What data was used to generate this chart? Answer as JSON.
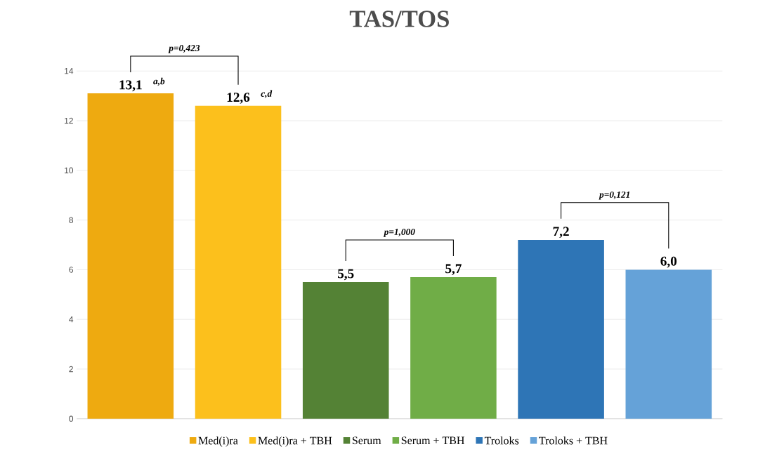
{
  "chart_data": {
    "type": "bar",
    "title": "TAS/TOS",
    "categories": [
      null,
      null,
      null,
      null,
      null,
      null
    ],
    "series": [
      {
        "name": "Med(i)ra",
        "color": "#eeaa10",
        "values": [
          13.1,
          null,
          null,
          null,
          null,
          null
        ],
        "value_labels": [
          "13,1",
          null,
          null,
          null,
          null,
          null
        ]
      },
      {
        "name": "Med(i)ra + TBH",
        "color": "#fcc01c",
        "values": [
          null,
          12.6,
          null,
          null,
          null,
          null
        ],
        "value_labels": [
          null,
          "12,6",
          null,
          null,
          null,
          null
        ]
      },
      {
        "name": "Serum",
        "color": "#548235",
        "values": [
          null,
          null,
          5.5,
          null,
          null,
          null
        ],
        "value_labels": [
          null,
          null,
          "5,5",
          null,
          null,
          null
        ]
      },
      {
        "name": "Serum + TBH",
        "color": "#70ad47",
        "values": [
          null,
          null,
          null,
          5.7,
          null,
          null
        ],
        "value_labels": [
          null,
          null,
          null,
          "5,7",
          null,
          null
        ]
      },
      {
        "name": "Troloks",
        "color": "#2e75b6",
        "values": [
          null,
          null,
          null,
          null,
          7.2,
          null
        ],
        "value_labels": [
          null,
          null,
          null,
          null,
          "7,2",
          null
        ]
      },
      {
        "name": "Troloks + TBH",
        "color": "#65a2d8",
        "values": [
          null,
          null,
          null,
          null,
          null,
          6.0
        ],
        "value_labels": [
          null,
          null,
          null,
          null,
          null,
          "6,0"
        ]
      }
    ],
    "annotations": [
      "a,b",
      "c,d",
      "p=0,423",
      "p=1,000",
      "p=0,121"
    ],
    "ylim": [
      0,
      14
    ],
    "yticks": [
      0,
      2,
      4,
      6,
      8,
      10,
      12,
      14
    ],
    "grid": "y",
    "legend": "bottom"
  }
}
